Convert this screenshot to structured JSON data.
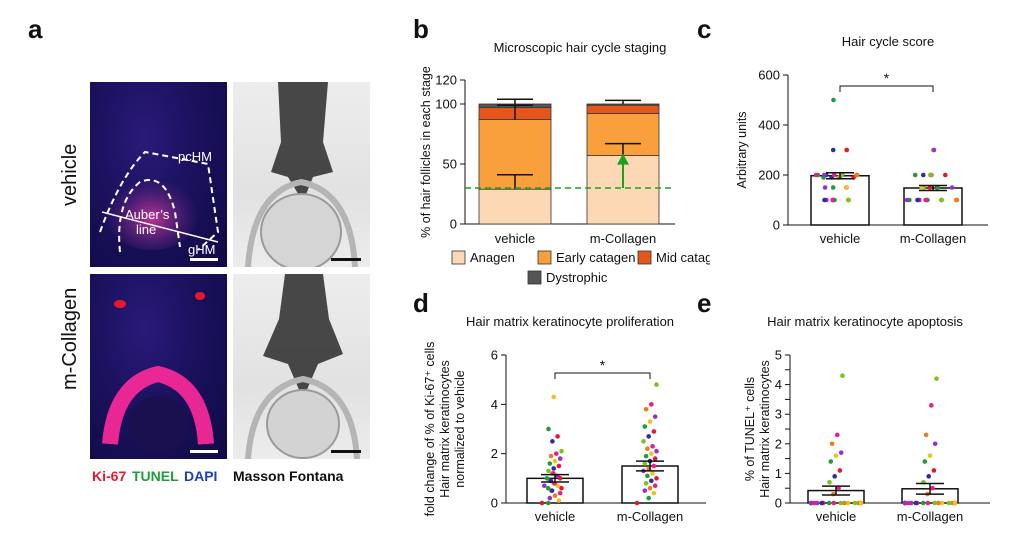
{
  "panels": {
    "a": "a",
    "b": "b",
    "c": "c",
    "d": "d",
    "e": "e"
  },
  "panel_a": {
    "row_labels": [
      "vehicle",
      "m-Collagen"
    ],
    "annotations": {
      "pchm": "pcHM",
      "auber1": "Auber’s",
      "auber2": "line",
      "ghm": "gHM"
    },
    "legend": [
      {
        "text": "Ki-67",
        "color": "#e8182c"
      },
      {
        "text": "TUNEL",
        "color": "#1e9e3a"
      },
      {
        "text": "DAPI",
        "color": "#1f3fb8"
      },
      {
        "text": "Masson Fontana",
        "color": "#111111"
      }
    ]
  },
  "chart_data": [
    {
      "id": "b",
      "type": "bar",
      "stacked": true,
      "title": "Microscopic hair cycle staging",
      "ylabel": "% of hair follicles in each stage",
      "ylim": [
        0,
        120
      ],
      "yticks": [
        0,
        50,
        100,
        120
      ],
      "categories": [
        "vehicle",
        "m-Collagen"
      ],
      "series": [
        {
          "name": "Anagen",
          "color": "#fcd9b4",
          "values": [
            29,
            57
          ]
        },
        {
          "name": "Early catagen",
          "color": "#f9a03c",
          "values": [
            58,
            35
          ]
        },
        {
          "name": "Mid catagen",
          "color": "#e4561b",
          "values": [
            10,
            7
          ]
        },
        {
          "name": "Dystrophic",
          "color": "#555555",
          "values": [
            3,
            1
          ]
        }
      ],
      "error_bars": [
        {
          "category": "vehicle",
          "y": 29,
          "err": 12
        },
        {
          "category": "vehicle",
          "y": 87,
          "err": 12
        },
        {
          "category": "vehicle",
          "y": 100,
          "err": 4
        },
        {
          "category": "m-Collagen",
          "y": 57,
          "err": 10
        },
        {
          "category": "m-Collagen",
          "y": 100,
          "err": 3
        }
      ],
      "reference_line": {
        "y": 30,
        "color": "#19a21e",
        "style": "dashed"
      },
      "arrow": {
        "category": "m-Collagen",
        "from": 30,
        "to": 57,
        "color": "#19a21e"
      }
    },
    {
      "id": "c",
      "type": "bar",
      "title": "Hair cycle score",
      "ylabel": "Arbitrary units",
      "ylim": [
        0,
        600
      ],
      "yticks": [
        0,
        200,
        400,
        600
      ],
      "categories": [
        "vehicle",
        "m-Collagen"
      ],
      "values": [
        197,
        148
      ],
      "errors": [
        12,
        10
      ],
      "significance": "*",
      "points": [
        {
          "x": "vehicle",
          "values": [
            100,
            100,
            100,
            100,
            100,
            100,
            100,
            100,
            150,
            150,
            150,
            150,
            190,
            190,
            190,
            190,
            190,
            190,
            200,
            200,
            200,
            200,
            200,
            200,
            200,
            200,
            200,
            200,
            200,
            200,
            300,
            300,
            300,
            500
          ]
        },
        {
          "x": "m-Collagen",
          "values": [
            100,
            100,
            100,
            100,
            100,
            100,
            100,
            100,
            100,
            100,
            100,
            100,
            100,
            150,
            150,
            150,
            150,
            150,
            150,
            150,
            200,
            200,
            200,
            200,
            200,
            200,
            300,
            300
          ]
        }
      ]
    },
    {
      "id": "d",
      "type": "bar",
      "title": "Hair matrix keratinocyte proliferation",
      "ylabel": "fold change of % of Ki-67⁺ cells Hair matrix keratinocytes normalized to vehicle",
      "ylabel_lines": [
        "fold change of % of Ki-67⁺ cells",
        "Hair matrix keratinocytes",
        "normalized to vehicle"
      ],
      "ylim": [
        0,
        6
      ],
      "yticks": [
        0,
        2,
        4,
        6
      ],
      "categories": [
        "vehicle",
        "m-Collagen"
      ],
      "values": [
        1.0,
        1.5
      ],
      "errors": [
        0.15,
        0.2
      ],
      "significance": "*",
      "points": [
        {
          "x": "vehicle",
          "values": [
            0,
            0,
            0.1,
            0.2,
            0.3,
            0.4,
            0.5,
            0.5,
            0.6,
            0.6,
            0.7,
            0.7,
            0.8,
            0.8,
            0.9,
            0.9,
            1.0,
            1.0,
            1.1,
            1.1,
            1.2,
            1.2,
            1.3,
            1.4,
            1.5,
            1.6,
            1.7,
            1.8,
            1.9,
            2.0,
            2.1,
            2.5,
            2.7,
            3.0,
            4.3
          ]
        },
        {
          "x": "m-Collagen",
          "values": [
            0,
            0.2,
            0.4,
            0.5,
            0.6,
            0.7,
            0.8,
            0.9,
            1.0,
            1.1,
            1.2,
            1.3,
            1.4,
            1.5,
            1.6,
            1.7,
            1.8,
            1.9,
            2.0,
            2.1,
            2.2,
            2.3,
            2.5,
            2.7,
            2.9,
            3.1,
            3.3,
            3.5,
            3.8,
            4.0,
            4.8
          ]
        }
      ]
    },
    {
      "id": "e",
      "type": "bar",
      "title": "Hair matrix keratinocyte apoptosis",
      "ylabel": "% of TUNEL⁺ cells Hair matrix keratinocytes",
      "ylabel_lines": [
        "% of TUNEL⁺ cells",
        "Hair matrix keratinocytes"
      ],
      "ylim": [
        0,
        5
      ],
      "yticks": [
        0,
        0.5,
        1,
        1.5,
        2,
        2.5,
        3,
        3.5,
        4,
        4.5,
        5
      ],
      "categories": [
        "vehicle",
        "m-Collagen"
      ],
      "values": [
        0.42,
        0.48
      ],
      "errors": [
        0.15,
        0.18
      ],
      "points": [
        {
          "x": "vehicle",
          "values": [
            0,
            0,
            0,
            0,
            0,
            0,
            0,
            0,
            0,
            0,
            0,
            0,
            0,
            0,
            0,
            0,
            0,
            0,
            0,
            0,
            0.3,
            0.5,
            0.7,
            0.9,
            1.1,
            1.4,
            1.6,
            1.7,
            2.0,
            2.3,
            4.3
          ]
        },
        {
          "x": "m-Collagen",
          "values": [
            0,
            0,
            0,
            0,
            0,
            0,
            0,
            0,
            0,
            0,
            0,
            0,
            0,
            0,
            0,
            0,
            0,
            0,
            0,
            0,
            0.3,
            0.5,
            0.7,
            0.9,
            1.1,
            1.4,
            1.6,
            2.0,
            2.3,
            3.3,
            4.2
          ]
        }
      ]
    }
  ],
  "legend_b": [
    "Anagen",
    "Early catagen",
    "Mid catagen",
    "Dystrophic"
  ]
}
